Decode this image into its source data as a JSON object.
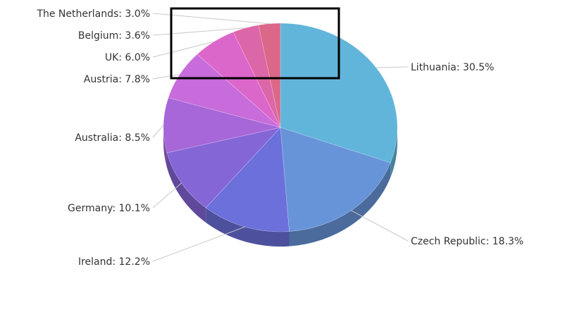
{
  "chart_data": {
    "type": "pie",
    "title": "",
    "categories": [
      "Lithuania",
      "Czech Republic",
      "Ireland",
      "Germany",
      "Australia",
      "Austria",
      "UK",
      "Belgium",
      "The Netherlands"
    ],
    "values": [
      30.5,
      18.3,
      12.2,
      10.1,
      8.5,
      7.8,
      6.0,
      3.6,
      3.0
    ],
    "labels": [
      "Lithuania: 30.5%",
      "Czech Republic: 18.3%",
      "Ireland: 12.2%",
      "Germany: 10.1%",
      "Australia: 8.5%",
      "Austria: 7.8%",
      "UK: 6.0%",
      "Belgium: 3.6%",
      "The Netherlands: 3.0%"
    ],
    "colors": [
      "#62b5da",
      "#6794d9",
      "#6b70da",
      "#8566d7",
      "#a767d8",
      "#c86cdb",
      "#dc67cb",
      "#dc67a8",
      "#db6888"
    ],
    "style": "3d-pie",
    "legend": "none"
  }
}
